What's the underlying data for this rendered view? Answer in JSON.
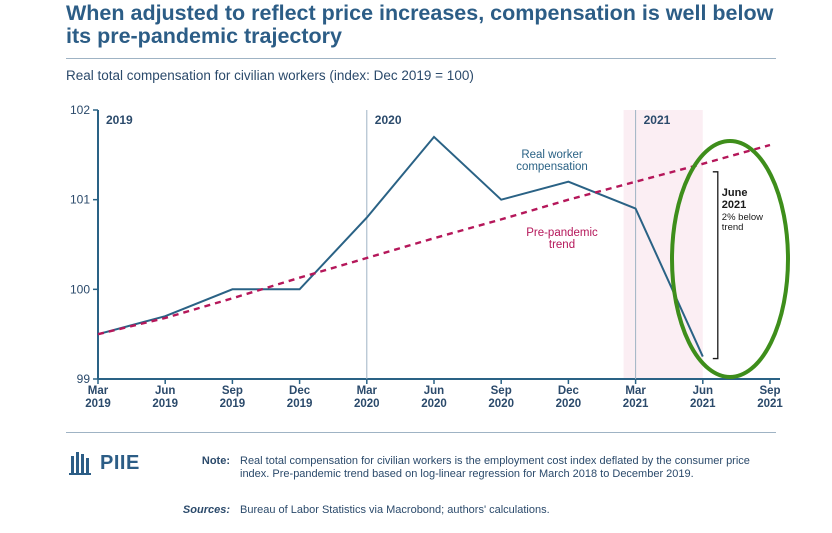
{
  "header": {
    "title": "When adjusted to reflect price increases, compensation is well below its pre-pandemic trajectory",
    "subtitle": "Real total compensation for civilian workers (index: Dec 2019 = 100)"
  },
  "chart_data": {
    "type": "line",
    "title": "Real total compensation for civilian workers (index: Dec 2019 = 100)",
    "categories": [
      "Mar 2019",
      "Jun 2019",
      "Sep 2019",
      "Dec 2019",
      "Mar 2020",
      "Jun 2020",
      "Sep 2020",
      "Dec 2020",
      "Mar 2021",
      "Jun 2021",
      "Sep 2021"
    ],
    "x_tick_lines": [
      [
        "Mar",
        "2019"
      ],
      [
        "Jun",
        "2019"
      ],
      [
        "Sep",
        "2019"
      ],
      [
        "Dec",
        "2019"
      ],
      [
        "Mar",
        "2020"
      ],
      [
        "Jun",
        "2020"
      ],
      [
        "Sep",
        "2020"
      ],
      [
        "Dec",
        "2020"
      ],
      [
        "Mar",
        "2021"
      ],
      [
        "Jun",
        "2021"
      ],
      [
        "Sep",
        "2021"
      ]
    ],
    "ylim": [
      99,
      102
    ],
    "yticks": [
      99,
      100,
      101,
      102
    ],
    "series": [
      {
        "name": "Real worker compensation",
        "label_lines": [
          "Real worker",
          "compensation"
        ],
        "color": "#2a6285",
        "style": "solid",
        "values": [
          99.5,
          99.7,
          100.0,
          100.0,
          100.8,
          101.7,
          101.0,
          101.2,
          100.9,
          99.25,
          null
        ]
      },
      {
        "name": "Pre-pandemic trend",
        "label_lines": [
          "Pre-pandemic",
          "trend"
        ],
        "color": "#b5175a",
        "style": "dashed",
        "values": [
          99.5,
          99.68,
          99.9,
          100.13,
          100.35,
          100.57,
          100.78,
          101.0,
          101.2,
          101.4,
          101.61
        ]
      }
    ],
    "year_labels": [
      {
        "label": "2019",
        "at_index": 0
      },
      {
        "label": "2020",
        "at_index": 4
      },
      {
        "label": "2021",
        "at_index": 8
      }
    ],
    "annotation": {
      "lines": [
        "June",
        "2021",
        "2% below",
        "trend"
      ],
      "at_index": 9
    },
    "highlight": {
      "from_index": 8,
      "to_index": 9,
      "color": "#fbeef3"
    },
    "circle_color": "#3e8e1b"
  },
  "footer": {
    "logo_text": "PIIE",
    "note_label": "Note:",
    "note_text": "Real total compensation for civilian workers is the employment cost index deflated by the consumer price index. Pre-pandemic trend based on log-linear regression for March 2018 to December 2019.",
    "sources_label": "Sources:",
    "sources_text": "Bureau of Labor Statistics via Macrobond; authors' calculations."
  }
}
